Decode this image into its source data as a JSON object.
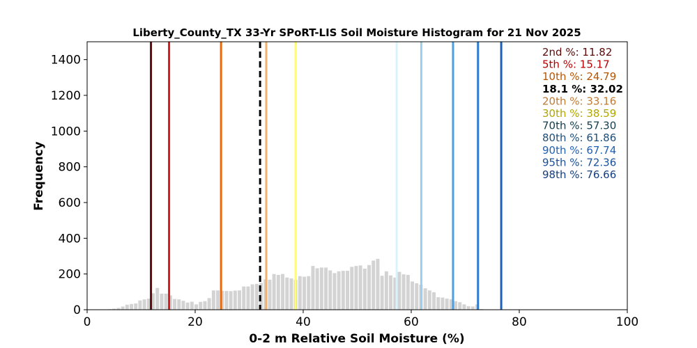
{
  "chart_data": {
    "type": "bar",
    "title": "Liberty_County_TX 33-Yr SPoRT-LIS Soil Moisture Histogram for 21 Nov 2025",
    "xlabel": "0-2 m Relative Soil Moisture (%)",
    "ylabel": "Frequency",
    "xlim": [
      0,
      100
    ],
    "ylim": [
      0,
      1500
    ],
    "xticks": [
      0,
      20,
      40,
      60,
      80,
      100
    ],
    "yticks": [
      0,
      200,
      400,
      600,
      800,
      1000,
      1200,
      1400
    ],
    "bar_color": "#d3d3d3",
    "bins": [
      {
        "x": 4.2,
        "y": 3
      },
      {
        "x": 5.0,
        "y": 6
      },
      {
        "x": 5.8,
        "y": 10
      },
      {
        "x": 6.6,
        "y": 18
      },
      {
        "x": 7.4,
        "y": 28
      },
      {
        "x": 8.2,
        "y": 32
      },
      {
        "x": 9.0,
        "y": 35
      },
      {
        "x": 9.8,
        "y": 52
      },
      {
        "x": 10.6,
        "y": 58
      },
      {
        "x": 11.4,
        "y": 62
      },
      {
        "x": 12.2,
        "y": 92
      },
      {
        "x": 13.0,
        "y": 122
      },
      {
        "x": 13.8,
        "y": 90
      },
      {
        "x": 14.6,
        "y": 90
      },
      {
        "x": 15.4,
        "y": 80
      },
      {
        "x": 16.2,
        "y": 60
      },
      {
        "x": 17.0,
        "y": 58
      },
      {
        "x": 17.8,
        "y": 50
      },
      {
        "x": 18.6,
        "y": 40
      },
      {
        "x": 19.4,
        "y": 45
      },
      {
        "x": 20.2,
        "y": 30
      },
      {
        "x": 21.0,
        "y": 44
      },
      {
        "x": 21.8,
        "y": 48
      },
      {
        "x": 22.6,
        "y": 65
      },
      {
        "x": 23.4,
        "y": 108
      },
      {
        "x": 24.2,
        "y": 108
      },
      {
        "x": 25.0,
        "y": 106
      },
      {
        "x": 25.8,
        "y": 105
      },
      {
        "x": 26.6,
        "y": 104
      },
      {
        "x": 27.4,
        "y": 107
      },
      {
        "x": 28.2,
        "y": 108
      },
      {
        "x": 29.0,
        "y": 130
      },
      {
        "x": 29.8,
        "y": 130
      },
      {
        "x": 30.6,
        "y": 142
      },
      {
        "x": 31.4,
        "y": 145
      },
      {
        "x": 32.2,
        "y": 150
      },
      {
        "x": 33.0,
        "y": 170
      },
      {
        "x": 33.8,
        "y": 168
      },
      {
        "x": 34.6,
        "y": 200
      },
      {
        "x": 35.4,
        "y": 195
      },
      {
        "x": 36.2,
        "y": 200
      },
      {
        "x": 37.0,
        "y": 180
      },
      {
        "x": 37.8,
        "y": 175
      },
      {
        "x": 38.6,
        "y": 168
      },
      {
        "x": 39.4,
        "y": 188
      },
      {
        "x": 40.2,
        "y": 185
      },
      {
        "x": 41.0,
        "y": 188
      },
      {
        "x": 41.8,
        "y": 245
      },
      {
        "x": 42.6,
        "y": 232
      },
      {
        "x": 43.4,
        "y": 236
      },
      {
        "x": 44.2,
        "y": 236
      },
      {
        "x": 45.0,
        "y": 220
      },
      {
        "x": 45.8,
        "y": 205
      },
      {
        "x": 46.6,
        "y": 215
      },
      {
        "x": 47.4,
        "y": 218
      },
      {
        "x": 48.2,
        "y": 218
      },
      {
        "x": 49.0,
        "y": 240
      },
      {
        "x": 49.8,
        "y": 245
      },
      {
        "x": 50.6,
        "y": 248
      },
      {
        "x": 51.4,
        "y": 230
      },
      {
        "x": 52.2,
        "y": 250
      },
      {
        "x": 53.0,
        "y": 275
      },
      {
        "x": 53.8,
        "y": 285
      },
      {
        "x": 54.6,
        "y": 190
      },
      {
        "x": 55.4,
        "y": 215
      },
      {
        "x": 56.2,
        "y": 192
      },
      {
        "x": 57.0,
        "y": 180
      },
      {
        "x": 57.8,
        "y": 212
      },
      {
        "x": 58.6,
        "y": 198
      },
      {
        "x": 59.4,
        "y": 195
      },
      {
        "x": 60.2,
        "y": 158
      },
      {
        "x": 61.0,
        "y": 148
      },
      {
        "x": 61.8,
        "y": 140
      },
      {
        "x": 62.6,
        "y": 120
      },
      {
        "x": 63.4,
        "y": 108
      },
      {
        "x": 64.2,
        "y": 98
      },
      {
        "x": 65.0,
        "y": 70
      },
      {
        "x": 65.8,
        "y": 68
      },
      {
        "x": 66.6,
        "y": 62
      },
      {
        "x": 67.4,
        "y": 58
      },
      {
        "x": 68.2,
        "y": 48
      },
      {
        "x": 69.0,
        "y": 42
      },
      {
        "x": 69.8,
        "y": 30
      },
      {
        "x": 70.6,
        "y": 20
      },
      {
        "x": 71.4,
        "y": 18
      },
      {
        "x": 72.2,
        "y": 30
      },
      {
        "x": 73.0,
        "y": 4
      }
    ],
    "percentile_lines": [
      {
        "label": "2nd %: 11.82",
        "value": 11.82,
        "color": "#5a0a0a",
        "dashed": false
      },
      {
        "label": "5th %: 15.17",
        "value": 15.17,
        "color": "#d7191c",
        "dashed": false
      },
      {
        "label": "10th %: 24.79",
        "value": 24.79,
        "color": "#e66a0a",
        "dashed": false
      },
      {
        "label": "18.1 %: 32.02",
        "value": 32.02,
        "color": "#000000",
        "dashed": true
      },
      {
        "label": "20th %: 33.16",
        "value": 33.16,
        "color": "#f4b16e",
        "dashed": false
      },
      {
        "label": "30th %: 38.59",
        "value": 38.59,
        "color": "#ffff66",
        "dashed": false
      },
      {
        "label": "70th %: 57.30",
        "value": 57.3,
        "color": "#d8f3fb",
        "dashed": false
      },
      {
        "label": "80th %: 61.86",
        "value": 61.86,
        "color": "#99d0f0",
        "dashed": false
      },
      {
        "label": "90th %: 67.74",
        "value": 67.74,
        "color": "#4d9fe0",
        "dashed": false
      },
      {
        "label": "95th %: 72.36",
        "value": 72.36,
        "color": "#2a7ad4",
        "dashed": false
      },
      {
        "label": "98th %: 76.66",
        "value": 76.66,
        "color": "#1f5fb4",
        "dashed": false
      }
    ],
    "legend_text_colors": [
      "#5a0a0a",
      "#b40000",
      "#b85400",
      "#000000",
      "#c07a33",
      "#b0a600",
      "#123c4a",
      "#1d4e7a",
      "#1f5fb4",
      "#1a4f99",
      "#133e80"
    ]
  }
}
